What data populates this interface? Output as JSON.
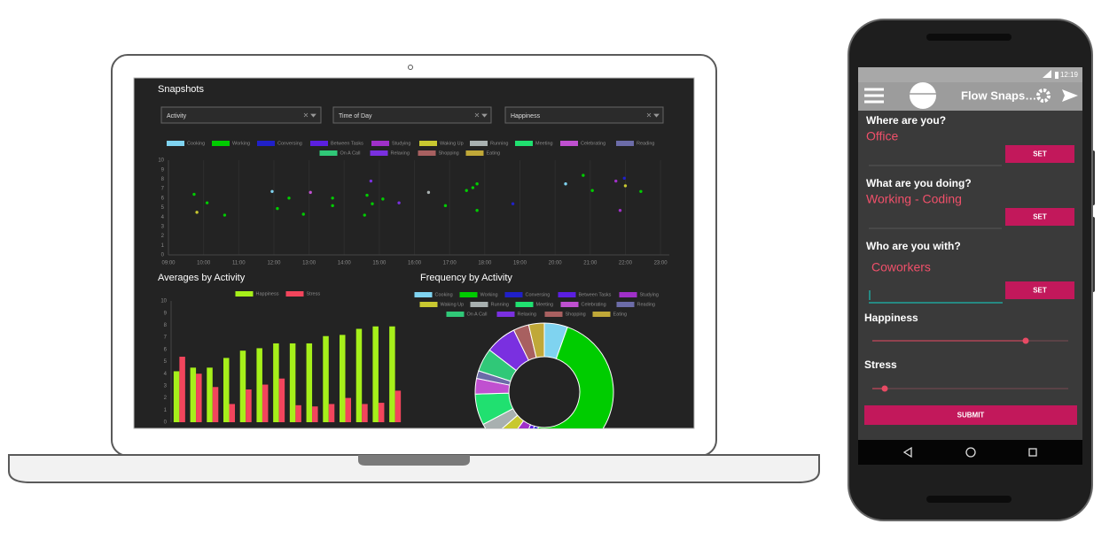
{
  "dashboard": {
    "title": "Snapshots",
    "filters": [
      "Activity",
      "Time of Day",
      "Happiness"
    ]
  },
  "chart_data": [
    {
      "type": "scatter",
      "series": [
        {
          "name": "Cooking",
          "color": "#7fd3f0",
          "x": [
            11.95,
            20.3
          ],
          "values": [
            6.7,
            7.5
          ]
        },
        {
          "name": "Working",
          "color": "#00cc00",
          "x": [
            9.73,
            10.1,
            10.6,
            12.1,
            12.43,
            12.84,
            13.67,
            13.67,
            14.58,
            14.65,
            14.8,
            15.1,
            16.88,
            17.48,
            17.66,
            17.78,
            17.78,
            20.8,
            21.06,
            22.44
          ],
          "values": [
            6.4,
            5.5,
            4.2,
            4.9,
            6.0,
            4.3,
            6.0,
            5.2,
            4.2,
            6.3,
            5.4,
            5.9,
            5.2,
            6.8,
            7.1,
            7.5,
            4.7,
            8.4,
            6.8,
            6.7
          ]
        },
        {
          "name": "Conversing",
          "color": "#2020c8",
          "x": [
            18.8,
            21.97
          ],
          "values": [
            5.4,
            8.1
          ]
        },
        {
          "name": "Between Tasks",
          "color": "#5b1fe0",
          "x": [],
          "values": []
        },
        {
          "name": "Studying",
          "color": "#a030c8",
          "x": [
            21.73,
            21.85
          ],
          "values": [
            7.8,
            4.7
          ]
        },
        {
          "name": "Waking Up",
          "color": "#c8c830",
          "x": [
            9.81,
            22.0
          ],
          "values": [
            4.5,
            7.3
          ]
        },
        {
          "name": "Running",
          "color": "#a8b0b0",
          "x": [
            16.4
          ],
          "values": [
            6.6
          ]
        },
        {
          "name": "Meeting",
          "color": "#20e070",
          "x": [],
          "values": []
        },
        {
          "name": "Celebrating",
          "color": "#c050d0",
          "x": [
            13.04
          ],
          "values": [
            6.6
          ]
        },
        {
          "name": "Reading",
          "color": "#6c6ca8",
          "x": [],
          "values": []
        },
        {
          "name": "On A Call",
          "color": "#30c878",
          "x": [],
          "values": []
        },
        {
          "name": "Relaxing",
          "color": "#7a30e0",
          "x": [
            14.76,
            15.56
          ],
          "values": [
            7.8,
            5.5
          ]
        },
        {
          "name": "Shopping",
          "color": "#a86060",
          "x": [],
          "values": []
        },
        {
          "name": "Eating",
          "color": "#c0a838",
          "x": [],
          "values": []
        }
      ],
      "xlim": [
        9,
        23.25
      ],
      "xticks": [
        {
          "value": 9,
          "label": "09:00"
        },
        {
          "value": 10,
          "label": "10:00"
        },
        {
          "value": 11,
          "label": "11:00"
        },
        {
          "value": 12,
          "label": "12:00"
        },
        {
          "value": 13,
          "label": "13:00"
        },
        {
          "value": 14,
          "label": "14:00"
        },
        {
          "value": 15,
          "label": "15:00"
        },
        {
          "value": 16,
          "label": "16:00"
        },
        {
          "value": 17,
          "label": "17:00"
        },
        {
          "value": 18,
          "label": "18:00"
        },
        {
          "value": 19,
          "label": "19:00"
        },
        {
          "value": 20,
          "label": "20:00"
        },
        {
          "value": 21,
          "label": "21:00"
        },
        {
          "value": 22,
          "label": "22:00"
        },
        {
          "value": 23,
          "label": "23:00"
        }
      ],
      "ylim": [
        0,
        10
      ],
      "yticks": [
        0,
        1,
        2,
        3,
        4,
        5,
        6,
        7,
        8,
        9,
        10
      ],
      "grid": true
    },
    {
      "type": "bar",
      "title": "Averages by Activity",
      "categories": [
        null,
        null,
        null,
        null,
        null,
        null,
        null,
        null,
        null,
        null,
        null,
        null,
        null,
        null
      ],
      "series": [
        {
          "name": "Happiness",
          "color": "#a6f01a",
          "values": [
            4.2,
            4.5,
            4.5,
            5.3,
            5.9,
            6.1,
            6.5,
            6.5,
            6.5,
            7.1,
            7.2,
            7.7,
            7.9,
            7.9
          ]
        },
        {
          "name": "Stress",
          "color": "#f2455c",
          "values": [
            5.4,
            4.0,
            2.9,
            1.5,
            2.7,
            3.1,
            3.6,
            1.4,
            1.3,
            1.5,
            2.0,
            1.5,
            1.6,
            2.6
          ]
        }
      ],
      "ylim": [
        0,
        10
      ],
      "yticks": [
        0,
        1,
        2,
        3,
        4,
        5,
        6,
        7,
        8,
        9,
        10
      ]
    },
    {
      "type": "pie",
      "title": "Frequency by Activity",
      "donut": true,
      "categories": [
        "Cooking",
        "Working",
        "Conversing",
        "Between Tasks",
        "Studying",
        "Waking Up",
        "Running",
        "Meeting",
        "Celebrating",
        "Reading",
        "On A Call",
        "Relaxing",
        "Shopping",
        "Eating"
      ],
      "colors": [
        "#7fd3f0",
        "#00cc00",
        "#2020c8",
        "#5b1fe0",
        "#a030c8",
        "#c8c830",
        "#a8b0b0",
        "#20e070",
        "#c050d0",
        "#6c6ca8",
        "#30c878",
        "#7a30e0",
        "#a86060",
        "#c0a838"
      ],
      "values": [
        3,
        26,
        1,
        1,
        2,
        2,
        2,
        4,
        2,
        1,
        3,
        4,
        2,
        2
      ]
    }
  ],
  "phone": {
    "status_time": "12:19",
    "app_title": "Flow Snaps…",
    "questions": [
      {
        "label": "Where are you?",
        "answer": "Office",
        "button": "SET"
      },
      {
        "label": "What are you doing?",
        "answer": "Working - Coding",
        "button": "SET"
      },
      {
        "label": "Who are you with?",
        "answer": "Coworkers",
        "button": "SET"
      }
    ],
    "sliders": [
      "Happiness",
      "Stress"
    ],
    "submit": "SUBMIT"
  }
}
